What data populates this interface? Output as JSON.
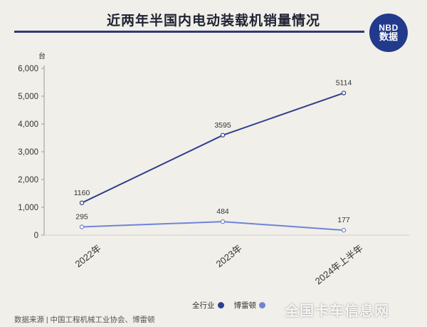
{
  "header": {
    "title": "近两年半国内电动装载机销量情况"
  },
  "logo": {
    "line1": "NBD",
    "line2": "数据"
  },
  "source": {
    "text": "数据来源 | 中国工程机械工业协会、博雷顿"
  },
  "watermark": {
    "text": "全国卡车信息网"
  },
  "chart_data": {
    "type": "line",
    "unit_label": "台",
    "categories": [
      "2022年",
      "2023年",
      "2024年上半年"
    ],
    "ylim": [
      0,
      6000
    ],
    "yticks": [
      "0",
      "1,000",
      "2,000",
      "3,000",
      "4,000",
      "5,000",
      "6,000"
    ],
    "ytick_values": [
      0,
      1000,
      2000,
      3000,
      4000,
      5000,
      6000
    ],
    "grid": false,
    "legend_position": "bottom",
    "series": [
      {
        "name": "全行业",
        "values": [
          1160,
          3595,
          5114
        ],
        "labels": [
          "1160",
          "3595",
          "5114"
        ],
        "color": "#2f3f8f"
      },
      {
        "name": "博雷顿",
        "values": [
          295,
          484,
          177
        ],
        "labels": [
          "295",
          "484",
          "177"
        ],
        "color": "#6f84d8"
      }
    ]
  }
}
